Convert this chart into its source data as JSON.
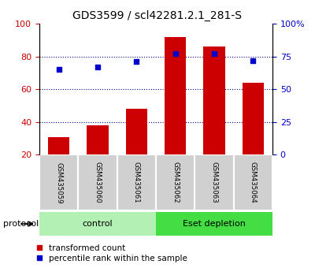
{
  "title": "GDS3599 / scl42281.2.1_281-S",
  "categories": [
    "GSM435059",
    "GSM435060",
    "GSM435061",
    "GSM435062",
    "GSM435063",
    "GSM435064"
  ],
  "bar_values": [
    31,
    38,
    48,
    92,
    86,
    64
  ],
  "percentile_values": [
    65,
    67,
    71,
    77,
    77,
    72
  ],
  "bar_color": "#cc0000",
  "dot_color": "#0000cc",
  "ylim_left": [
    20,
    100
  ],
  "yticks_left": [
    20,
    40,
    60,
    80,
    100
  ],
  "right_ticks_pct": [
    0,
    25,
    50,
    75,
    100
  ],
  "groups": [
    {
      "label": "control",
      "start": 0,
      "end": 3,
      "color": "#b3f0b3"
    },
    {
      "label": "Eset depletion",
      "start": 3,
      "end": 6,
      "color": "#44dd44"
    }
  ],
  "protocol_label": "protocol",
  "legend_bar_label": "transformed count",
  "legend_dot_label": "percentile rank within the sample",
  "bar_width": 0.55,
  "title_fontsize": 10,
  "tick_label_fontsize": 8,
  "label_box_color": "#d0d0d0",
  "grid_dotted_color": "#00008b"
}
